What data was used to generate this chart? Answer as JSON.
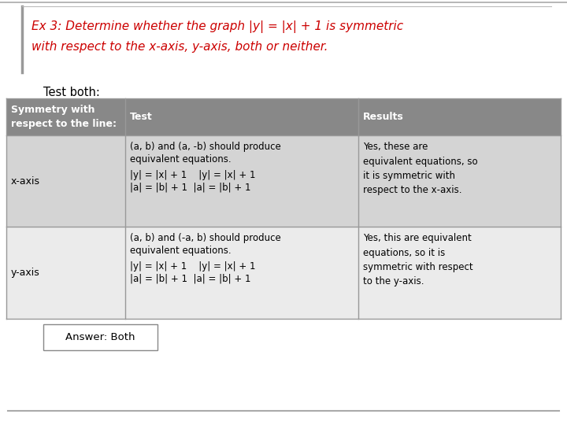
{
  "title_line1": "Ex 3: Determine whether the graph |y| = |x| + 1 is symmetric",
  "title_line2": "with respect to the x-axis, y-axis, both or neither.",
  "subtitle": "Test both:",
  "bg_color": "#ffffff",
  "header_bg": "#888888",
  "header_text_color": "#ffffff",
  "row1_bg": "#d4d4d4",
  "row2_bg": "#ebebeb",
  "title_color": "#cc0000",
  "border_color": "#999999",
  "col1_header": "Symmetry with\nrespect to the line:",
  "col2_header": "Test",
  "col3_header": "Results",
  "col1_row1": "x-axis",
  "col2_row1_l1": "(a, b) and (a, -b) should produce",
  "col2_row1_l2": "equivalent equations.",
  "col2_row1_l3": "|y| = |x| + 1    |y| = |x| + 1",
  "col2_row1_l4": "|a| = |b| + 1  |a| = |b| + 1",
  "col3_row1": "Yes, these are\nequivalent equations, so\nit is symmetric with\nrespect to the x-axis.",
  "col1_row2": "y-axis",
  "col2_row2_l1": "(a, b) and (-a, b) should produce",
  "col2_row2_l2": "equivalent equations.",
  "col2_row2_l3": "|y| = |x| + 1    |y| = |x| + 1",
  "col2_row2_l4": "|a| = |b| + 1  |a| = |b| + 1",
  "col3_row2": "Yes, this are equivalent\nequations, so it is\nsymmetric with respect\nto the y-axis.",
  "answer_label": "Answer: Both"
}
